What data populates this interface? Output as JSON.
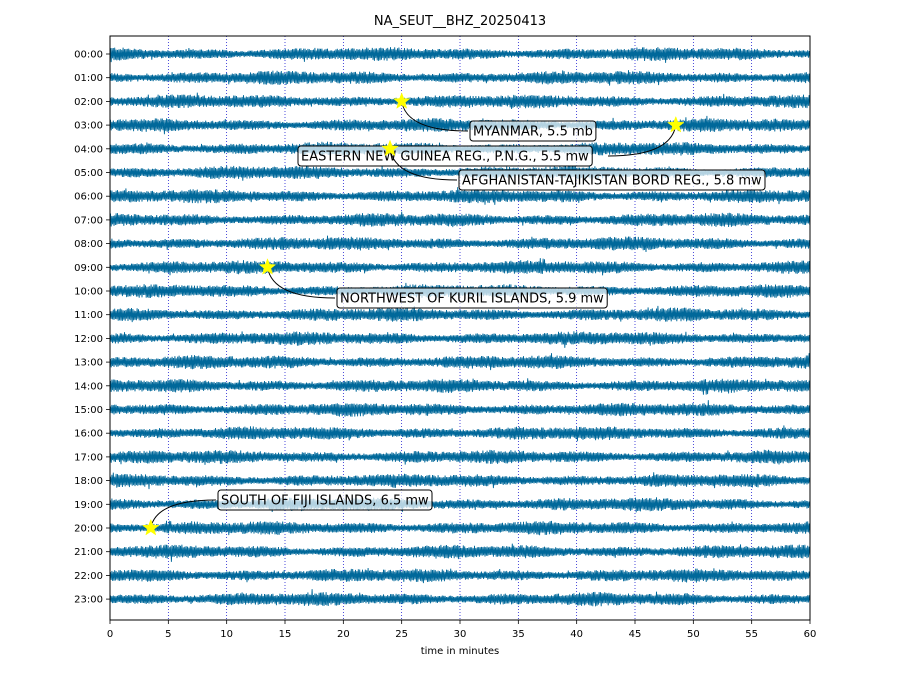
{
  "chart_data": {
    "type": "helicorder",
    "title": "NA_SEUT__BHZ_20250413",
    "xlabel": "time in minutes",
    "ylabel": "",
    "xlim": [
      0,
      60
    ],
    "x_ticks": [
      0,
      5,
      10,
      15,
      20,
      25,
      30,
      35,
      40,
      45,
      50,
      55,
      60
    ],
    "y_tick_labels": [
      "00:00",
      "01:00",
      "02:00",
      "03:00",
      "04:00",
      "05:00",
      "06:00",
      "07:00",
      "08:00",
      "09:00",
      "10:00",
      "11:00",
      "12:00",
      "13:00",
      "14:00",
      "15:00",
      "16:00",
      "17:00",
      "18:00",
      "19:00",
      "20:00",
      "21:00",
      "22:00",
      "23:00"
    ],
    "grid": "vertical dotted lines every 5 minutes",
    "trace_color": "#00689a",
    "vgrid_color": "#0000cc",
    "marker_color": "#ffff00",
    "events": [
      {
        "label": "MYANMAR, 5.5 mb",
        "hour": 2,
        "minute": 25.0
      },
      {
        "label": "EASTERN NEW GUINEA REG., P.N.G., 5.5 mw",
        "hour": 3,
        "minute": 48.5
      },
      {
        "label": "AFGHANISTAN-TAJIKISTAN BORD REG., 5.8 mw",
        "hour": 4,
        "minute": 24.0
      },
      {
        "label": "NORTHWEST OF KURIL ISLANDS, 5.9 mw",
        "hour": 9,
        "minute": 13.5
      },
      {
        "label": "SOUTH OF FIJI ISLANDS, 6.5 mw",
        "hour": 20,
        "minute": 3.5
      }
    ]
  }
}
